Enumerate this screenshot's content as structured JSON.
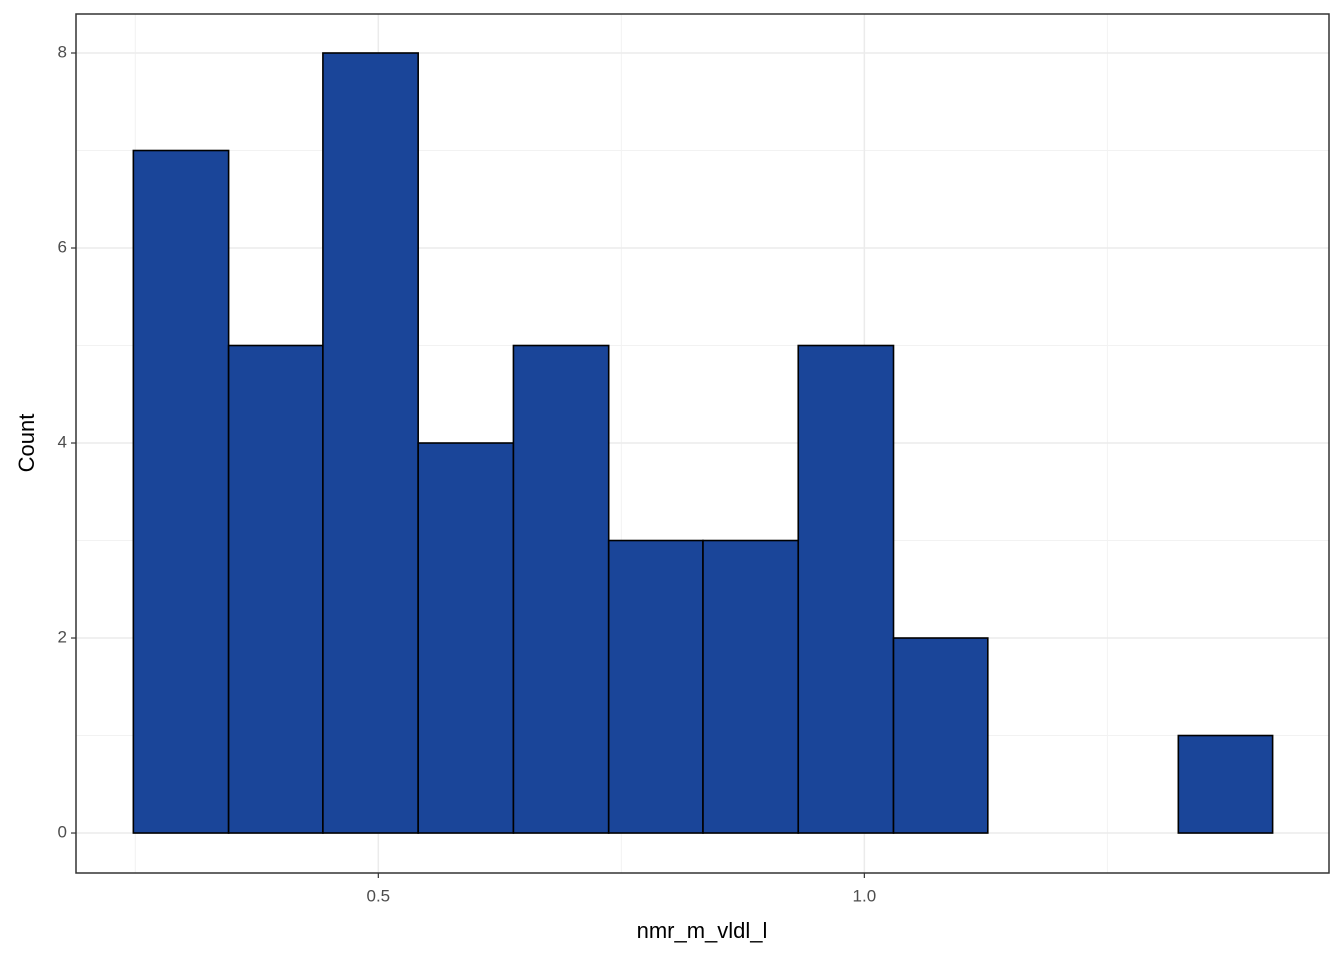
{
  "chart_data": {
    "type": "histogram",
    "x_label": "nmr_m_vldl_l",
    "y_label": "Count",
    "bins": [
      0.248,
      0.346,
      0.443,
      0.541,
      0.639,
      0.737,
      0.834,
      0.932,
      1.03,
      1.127,
      1.225,
      1.323,
      1.42
    ],
    "values": [
      7,
      5,
      8,
      4,
      5,
      3,
      3,
      5,
      2,
      0,
      0,
      1
    ],
    "color": "#1a4599",
    "xlim": [
      0.189,
      1.478
    ],
    "ylim": [
      -0.41,
      8.4
    ],
    "xticks": [
      0.5,
      {
        "value": 1,
        "label": "1.0"
      }
    ],
    "yticks": [
      0,
      2,
      4,
      6,
      8
    ],
    "grid": true
  }
}
